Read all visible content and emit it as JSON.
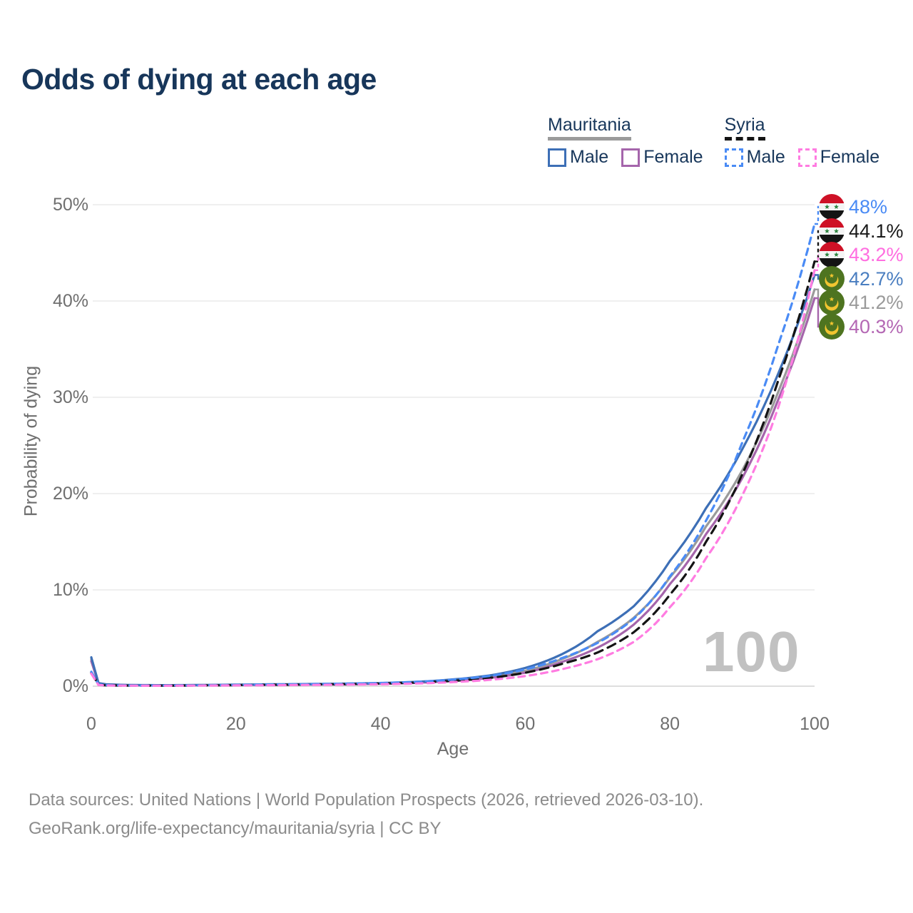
{
  "title": "Odds of dying at each age",
  "watermark": "100",
  "footer": {
    "line1": "Data sources: United Nations | World Population Prospects (2026, retrieved 2026-03-10).",
    "line2": "GeoRank.org/life-expectancy/mauritania/syria | CC BY"
  },
  "legend": {
    "groups": [
      {
        "name": "Mauritania",
        "underline_style": "solid",
        "underline_color": "#9b9b9b",
        "items": [
          {
            "label": "Male",
            "color": "#3d6fb6",
            "style": "solid"
          },
          {
            "label": "Female",
            "color": "#a565ab",
            "style": "solid"
          }
        ]
      },
      {
        "name": "Syria",
        "underline_style": "dashed",
        "underline_color": "#141414",
        "items": [
          {
            "label": "Male",
            "color": "#4a8bf5",
            "style": "dashed"
          },
          {
            "label": "Female",
            "color": "#ff7ce1",
            "style": "dashed"
          }
        ]
      }
    ]
  },
  "chart_data": {
    "type": "line",
    "title": "Odds of dying at each age",
    "xlabel": "Age",
    "ylabel": "Probability of dying",
    "xlim": [
      0,
      100
    ],
    "ylim": [
      0,
      50
    ],
    "x_ticks": [
      "0",
      "20",
      "40",
      "60",
      "80",
      "100"
    ],
    "y_ticks": [
      "0%",
      "10%",
      "20%",
      "30%",
      "40%",
      "50%"
    ],
    "grid": "horizontal",
    "legend_position": "top-right",
    "x": [
      0,
      1,
      2,
      5,
      10,
      15,
      20,
      25,
      30,
      35,
      40,
      45,
      50,
      55,
      60,
      65,
      70,
      75,
      80,
      85,
      90,
      95,
      100
    ],
    "series": [
      {
        "name": "Syria Male",
        "country": "Syria",
        "flag": "syria",
        "color": "#4a8bf5",
        "style": "dashed",
        "end_label": "48%",
        "end_value": 48.0,
        "label_color": "#4a8bf5",
        "values": [
          1.5,
          0.16,
          0.1,
          0.07,
          0.06,
          0.09,
          0.13,
          0.17,
          0.21,
          0.26,
          0.33,
          0.45,
          0.68,
          1.05,
          1.75,
          2.9,
          4.5,
          7.0,
          11.4,
          17.2,
          25.3,
          35.5,
          48.0
        ]
      },
      {
        "name": "Syria",
        "country": "Syria",
        "flag": "syria",
        "color": "#141414",
        "style": "dashed",
        "end_label": "44.1%",
        "end_value": 44.1,
        "label_color": "#1a1a1a",
        "values": [
          1.4,
          0.14,
          0.09,
          0.06,
          0.05,
          0.08,
          0.11,
          0.14,
          0.17,
          0.21,
          0.27,
          0.38,
          0.55,
          0.85,
          1.4,
          2.3,
          3.5,
          5.6,
          9.5,
          15.0,
          22.0,
          31.8,
          44.1
        ]
      },
      {
        "name": "Syria Female",
        "country": "Syria",
        "flag": "syria",
        "color": "#ff7ce1",
        "style": "dashed",
        "end_label": "43.2%",
        "end_value": 43.2,
        "label_color": "#ff6ee0",
        "values": [
          1.3,
          0.12,
          0.08,
          0.05,
          0.045,
          0.06,
          0.08,
          0.1,
          0.13,
          0.16,
          0.2,
          0.28,
          0.42,
          0.65,
          1.05,
          1.75,
          2.8,
          4.6,
          8.2,
          13.3,
          19.8,
          29.0,
          43.2
        ]
      },
      {
        "name": "Mauritania Male",
        "country": "Mauritania",
        "flag": "mauritania",
        "color": "#3d6fb6",
        "style": "solid",
        "end_label": "42.7%",
        "end_value": 42.7,
        "label_color": "#4a7ec0",
        "values": [
          3.0,
          0.32,
          0.2,
          0.12,
          0.1,
          0.12,
          0.16,
          0.19,
          0.22,
          0.26,
          0.32,
          0.45,
          0.7,
          1.1,
          1.9,
          3.3,
          5.7,
          8.3,
          13.0,
          18.5,
          24.6,
          32.5,
          42.7
        ]
      },
      {
        "name": "Mauritania",
        "country": "Mauritania",
        "flag": "mauritania",
        "color": "#9a9a9a",
        "style": "solid",
        "end_label": "41.2%",
        "end_value": 41.2,
        "label_color": "#9a9a9a",
        "values": [
          2.8,
          0.3,
          0.18,
          0.11,
          0.09,
          0.11,
          0.14,
          0.17,
          0.2,
          0.23,
          0.28,
          0.4,
          0.6,
          0.95,
          1.6,
          2.8,
          4.6,
          7.1,
          11.3,
          16.6,
          22.4,
          30.6,
          41.2
        ]
      },
      {
        "name": "Mauritania Female",
        "country": "Mauritania",
        "flag": "mauritania",
        "color": "#a565ab",
        "style": "solid",
        "end_label": "40.3%",
        "end_value": 40.3,
        "label_color": "#b468b4",
        "values": [
          2.6,
          0.28,
          0.17,
          0.1,
          0.08,
          0.1,
          0.12,
          0.14,
          0.17,
          0.2,
          0.25,
          0.35,
          0.55,
          0.85,
          1.4,
          2.5,
          4.0,
          6.4,
          10.6,
          15.8,
          21.6,
          29.8,
          40.3
        ]
      }
    ]
  }
}
